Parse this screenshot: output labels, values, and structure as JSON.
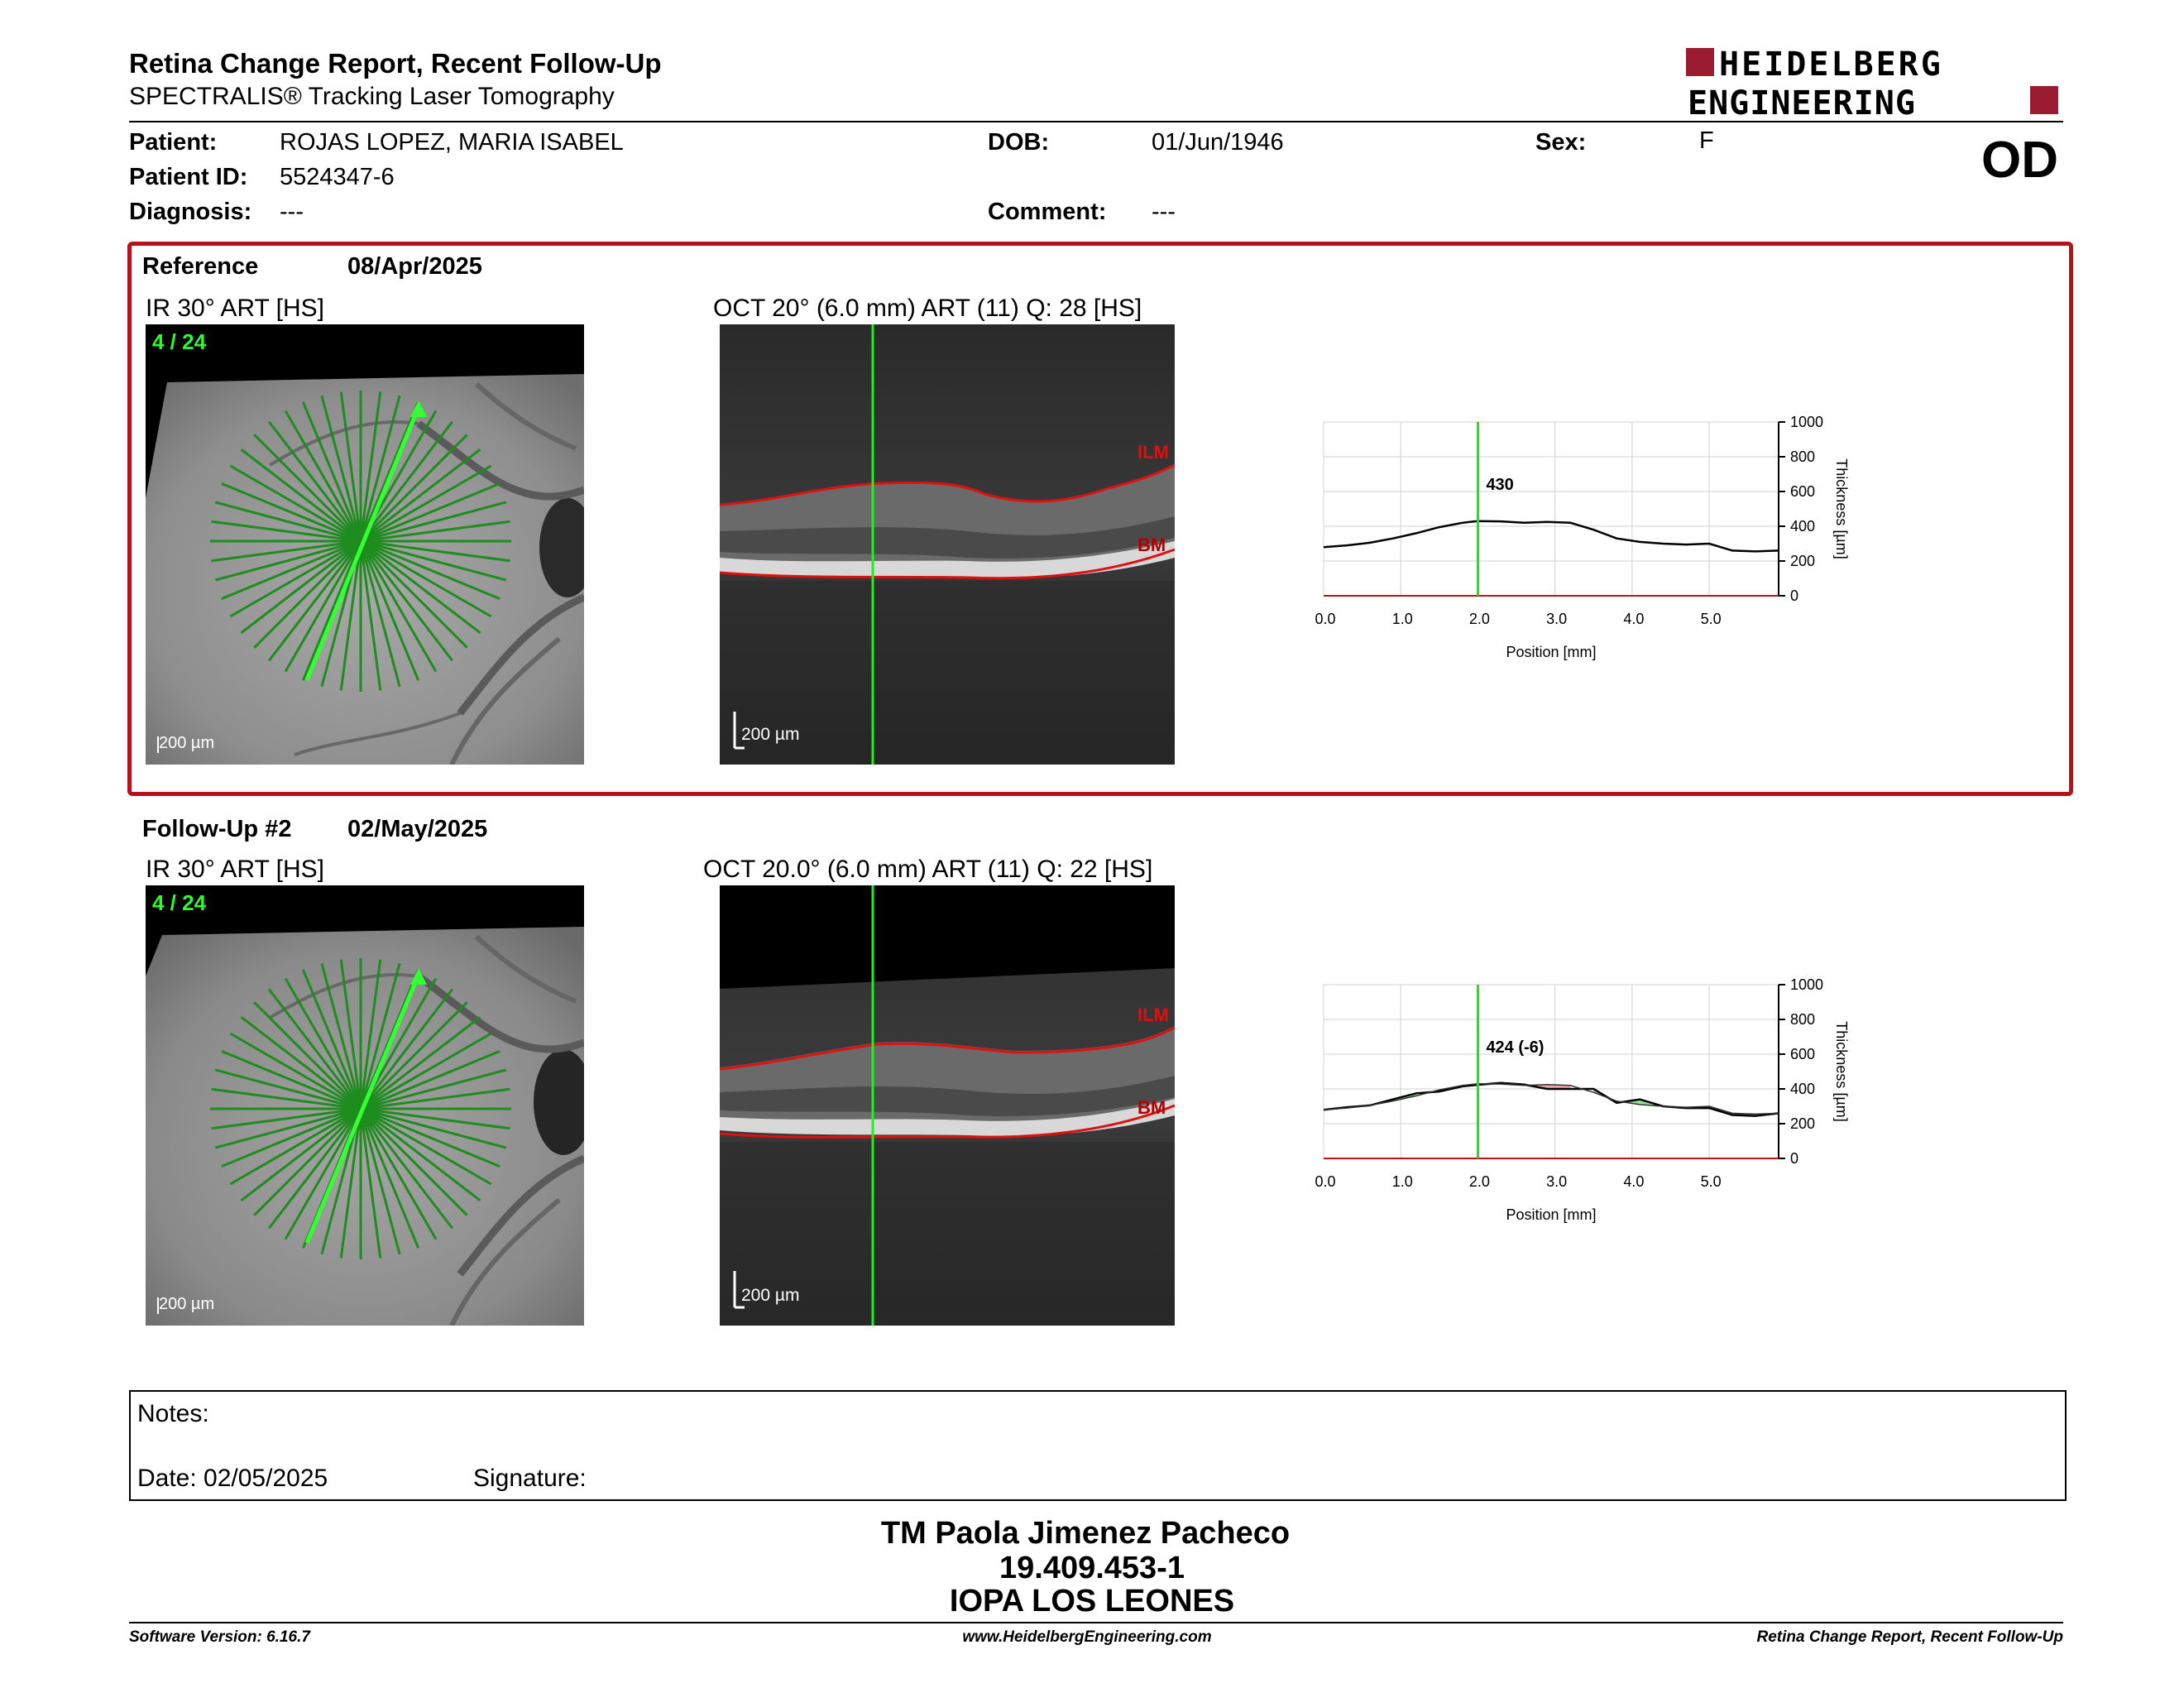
{
  "header": {
    "title": "Retina Change Report, Recent Follow-Up",
    "subtitle": "SPECTRALIS® Tracking Laser Tomography",
    "logo_line1": "HEIDELBERG",
    "logo_line2": "ENGINEERING",
    "eye": "OD",
    "brand_color": "#9b1b30"
  },
  "patient": {
    "patient_label": "Patient:",
    "patient_value": "ROJAS LOPEZ, MARIA ISABEL",
    "id_label": "Patient ID:",
    "id_value": "5524347-6",
    "diagnosis_label": "Diagnosis:",
    "diagnosis_value": "---",
    "dob_label": "DOB:",
    "dob_value": "01/Jun/1946",
    "comment_label": "Comment:",
    "comment_value": "---",
    "sex_label": "Sex:",
    "sex_value": "F"
  },
  "reference": {
    "label": "Reference",
    "date": "08/Apr/2025",
    "ir_title": "IR 30° ART [HS]",
    "ir_frame": "4 / 24",
    "ir_scale": "200 µm",
    "oct_title": "OCT 20° (6.0 mm) ART (11) Q: 28 [HS]",
    "oct_scale": "200 µm",
    "ilm_label": "ILM",
    "bm_label": "BM"
  },
  "followup": {
    "label": "Follow-Up #2",
    "date": "02/May/2025",
    "ir_title": "IR 30° ART [HS]",
    "ir_frame": "4 / 24",
    "ir_scale": "200 µm",
    "oct_title": "OCT 20.0° (6.0 mm) ART (11) Q: 22 [HS]",
    "oct_scale": "200 µm",
    "ilm_label": "ILM",
    "bm_label": "BM"
  },
  "chart_data": [
    {
      "type": "line",
      "xlabel": "Position [mm]",
      "ylabel": "Thickness [µm]",
      "xlim": [
        0,
        5.9
      ],
      "ylim": [
        0,
        1000
      ],
      "x_ticks": [
        "0.0",
        "1.0",
        "2.0",
        "3.0",
        "4.0",
        "5.0"
      ],
      "y_ticks": [
        "0",
        "200",
        "400",
        "600",
        "800",
        "1000"
      ],
      "grid": true,
      "cursor_x": 2.0,
      "cursor_label": "430",
      "series": [
        {
          "x": [
            0.0,
            0.3,
            0.6,
            0.9,
            1.2,
            1.5,
            1.8,
            2.0,
            2.3,
            2.6,
            2.9,
            3.2,
            3.5,
            3.8,
            4.1,
            4.4,
            4.7,
            5.0,
            5.3,
            5.6,
            5.9
          ],
          "values": [
            280,
            290,
            305,
            330,
            360,
            395,
            420,
            430,
            428,
            420,
            425,
            420,
            380,
            330,
            310,
            300,
            295,
            300,
            260,
            255,
            260
          ]
        }
      ]
    },
    {
      "type": "line",
      "xlabel": "Position [mm]",
      "ylabel": "Thickness [µm]",
      "xlim": [
        0,
        5.9
      ],
      "ylim": [
        0,
        1000
      ],
      "x_ticks": [
        "0.0",
        "1.0",
        "2.0",
        "3.0",
        "4.0",
        "5.0"
      ],
      "y_ticks": [
        "0",
        "200",
        "400",
        "600",
        "800",
        "1000"
      ],
      "grid": true,
      "cursor_x": 2.0,
      "cursor_label": "424 (-6)",
      "series": [
        {
          "x": [
            0.0,
            0.3,
            0.6,
            0.9,
            1.2,
            1.5,
            1.8,
            2.0,
            2.3,
            2.6,
            2.9,
            3.2,
            3.5,
            3.8,
            4.1,
            4.4,
            4.7,
            5.0,
            5.3,
            5.6,
            5.9
          ],
          "values": [
            280,
            295,
            305,
            340,
            375,
            385,
            415,
            424,
            435,
            425,
            400,
            400,
            400,
            320,
            340,
            300,
            290,
            290,
            250,
            245,
            260
          ]
        },
        {
          "x": [
            0.0,
            0.3,
            0.6,
            0.9,
            1.2,
            1.5,
            1.8,
            2.0,
            2.3,
            2.6,
            2.9,
            3.2,
            3.5,
            3.8,
            4.1,
            4.4,
            4.7,
            5.0,
            5.3,
            5.6,
            5.9
          ],
          "values": [
            280,
            290,
            305,
            330,
            360,
            395,
            420,
            430,
            428,
            420,
            425,
            420,
            380,
            330,
            310,
            300,
            295,
            300,
            260,
            255,
            260
          ]
        }
      ]
    }
  ],
  "notes": {
    "notes_label": "Notes:",
    "date_label": "Date: 02/05/2025",
    "signature_label": "Signature:"
  },
  "stamp": {
    "line1": "TM Paola Jimenez Pacheco",
    "line2": "19.409.453-1",
    "line3": "IOPA LOS LEONES"
  },
  "footer": {
    "software": "Software Version: 6.16.7",
    "website": "www.HeidelbergEngineering.com",
    "report_name": "Retina Change Report, Recent Follow-Up"
  }
}
